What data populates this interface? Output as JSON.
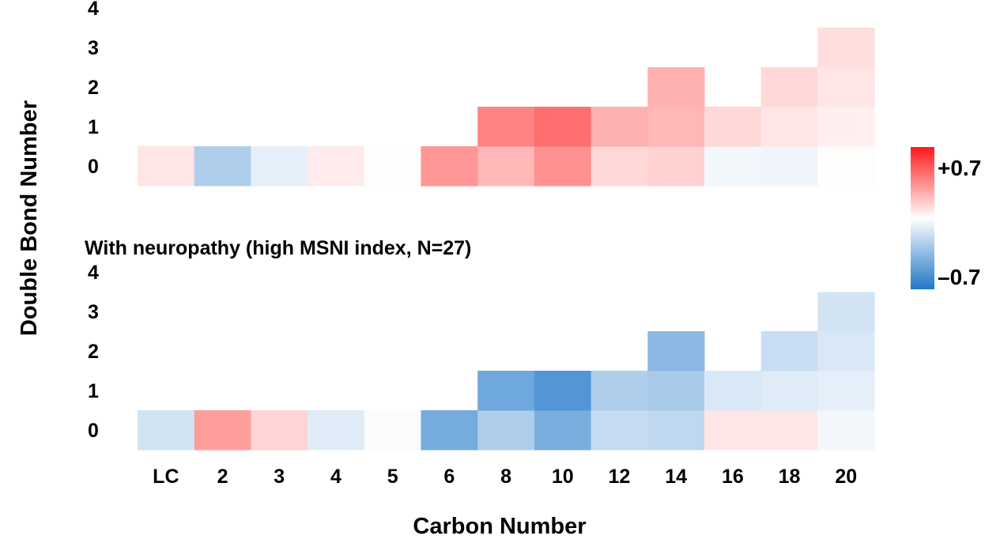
{
  "chart_data": {
    "type": "heatmap",
    "xlabel": "Carbon Number",
    "ylabel": "Double Bond Number",
    "x_categories": [
      "LC",
      "2",
      "3",
      "4",
      "5",
      "6",
      "8",
      "10",
      "12",
      "14",
      "16",
      "18",
      "20"
    ],
    "y_categories": [
      "0",
      "1",
      "2",
      "3",
      "4"
    ],
    "color_scale": {
      "min": -0.7,
      "max": 0.7,
      "min_label": "–0.7",
      "max_label": "+0.7",
      "low_color": "#1f77c8",
      "mid_color": "#ffffff",
      "high_color": "#ff1a1a"
    },
    "panels": [
      {
        "title": "",
        "values": [
          [
            0.08,
            -0.25,
            -0.08,
            0.06,
            0.01,
            0.32,
            0.22,
            0.34,
            0.12,
            0.14,
            -0.04,
            -0.05,
            0.01
          ],
          [
            null,
            null,
            null,
            null,
            null,
            null,
            0.38,
            0.44,
            0.24,
            0.22,
            0.12,
            0.08,
            0.05
          ],
          [
            null,
            null,
            null,
            null,
            null,
            null,
            null,
            null,
            null,
            0.24,
            null,
            0.12,
            0.08
          ],
          [
            null,
            null,
            null,
            null,
            null,
            null,
            null,
            null,
            null,
            null,
            null,
            null,
            0.1
          ],
          [
            null,
            null,
            null,
            null,
            null,
            null,
            null,
            null,
            null,
            null,
            null,
            null,
            null
          ]
        ]
      },
      {
        "title": "With neuropathy (high MSNI index, N=27)",
        "values": [
          [
            -0.14,
            0.3,
            0.13,
            -0.1,
            -0.02,
            -0.43,
            -0.25,
            -0.42,
            -0.18,
            -0.2,
            0.08,
            0.08,
            -0.04
          ],
          [
            null,
            null,
            null,
            null,
            null,
            null,
            -0.45,
            -0.54,
            -0.25,
            -0.27,
            -0.12,
            -0.1,
            -0.08
          ],
          [
            null,
            null,
            null,
            null,
            null,
            null,
            null,
            null,
            null,
            -0.36,
            null,
            -0.17,
            -0.12
          ],
          [
            null,
            null,
            null,
            null,
            null,
            null,
            null,
            null,
            null,
            null,
            null,
            null,
            -0.14
          ],
          [
            null,
            null,
            null,
            null,
            null,
            null,
            null,
            null,
            null,
            null,
            null,
            null,
            0.0
          ]
        ]
      }
    ]
  }
}
